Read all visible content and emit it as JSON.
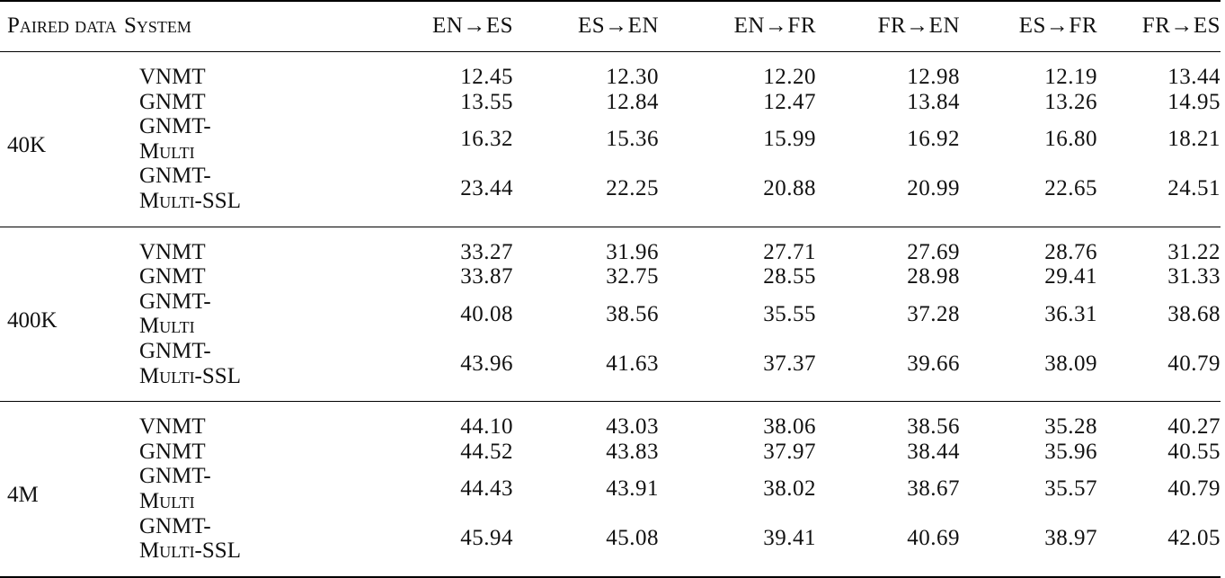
{
  "table": {
    "headers": [
      "Paired data",
      "System",
      "EN→ES",
      "ES→EN",
      "EN→FR",
      "FR→EN",
      "ES→FR",
      "FR→ES"
    ],
    "groups": [
      {
        "paired_data": "40K",
        "rows": [
          {
            "system": "VNMT",
            "values": [
              "12.45",
              "12.30",
              "12.20",
              "12.98",
              "12.19",
              "13.44"
            ]
          },
          {
            "system": "GNMT",
            "values": [
              "13.55",
              "12.84",
              "12.47",
              "13.84",
              "13.26",
              "14.95"
            ]
          },
          {
            "system": "GNMT-Multi",
            "values": [
              "16.32",
              "15.36",
              "15.99",
              "16.92",
              "16.80",
              "18.21"
            ]
          },
          {
            "system": "GNMT-Multi-SSL",
            "values": [
              "23.44",
              "22.25",
              "20.88",
              "20.99",
              "22.65",
              "24.51"
            ]
          }
        ]
      },
      {
        "paired_data": "400K",
        "rows": [
          {
            "system": "VNMT",
            "values": [
              "33.27",
              "31.96",
              "27.71",
              "27.69",
              "28.76",
              "31.22"
            ]
          },
          {
            "system": "GNMT",
            "values": [
              "33.87",
              "32.75",
              "28.55",
              "28.98",
              "29.41",
              "31.33"
            ]
          },
          {
            "system": "GNMT-Multi",
            "values": [
              "40.08",
              "38.56",
              "35.55",
              "37.28",
              "36.31",
              "38.68"
            ]
          },
          {
            "system": "GNMT-Multi-SSL",
            "values": [
              "43.96",
              "41.63",
              "37.37",
              "39.66",
              "38.09",
              "40.79"
            ]
          }
        ]
      },
      {
        "paired_data": "4M",
        "rows": [
          {
            "system": "VNMT",
            "values": [
              "44.10",
              "43.03",
              "38.06",
              "38.56",
              "35.28",
              "40.27"
            ]
          },
          {
            "system": "GNMT",
            "values": [
              "44.52",
              "43.83",
              "37.97",
              "38.44",
              "35.96",
              "40.55"
            ]
          },
          {
            "system": "GNMT-Multi",
            "values": [
              "44.43",
              "43.91",
              "38.02",
              "38.67",
              "35.57",
              "40.79"
            ]
          },
          {
            "system": "GNMT-Multi-SSL",
            "values": [
              "45.94",
              "45.08",
              "39.41",
              "40.69",
              "38.97",
              "42.05"
            ]
          }
        ]
      }
    ]
  }
}
